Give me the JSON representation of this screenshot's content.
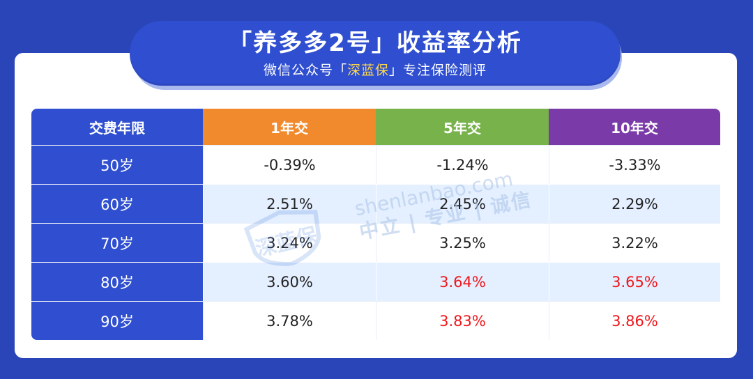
{
  "header": {
    "title": "「养多多2号」收益率分析",
    "subtitle_before": "微信公众号「",
    "subtitle_highlight": "深蓝保",
    "subtitle_after": "」专注保险测评"
  },
  "table": {
    "columns": [
      "交费年限",
      "1年交",
      "5年交",
      "10年交"
    ],
    "rows": [
      {
        "age": "50岁",
        "values": [
          "-0.39%",
          "-1.24%",
          "-3.33%"
        ]
      },
      {
        "age": "60岁",
        "values": [
          "2.51%",
          "2.45%",
          "2.29%"
        ]
      },
      {
        "age": "70岁",
        "values": [
          "3.24%",
          "3.25%",
          "3.22%"
        ]
      },
      {
        "age": "80岁",
        "values": [
          "3.60%",
          "3.64%",
          "3.65%"
        ]
      },
      {
        "age": "90岁",
        "values": [
          "3.78%",
          "3.83%",
          "3.86%"
        ]
      }
    ],
    "highlighted_cells_color": "#f0161b"
  },
  "watermark": {
    "logo_text": "深蓝保",
    "line1": "shenlanbao.com",
    "line2": "中立 | 专业 | 诚信"
  },
  "colors": {
    "background": "#2a45b8",
    "header_blue": "#2f4fd0",
    "col_1": "#f08a2c",
    "col_5": "#78b24a",
    "col_10": "#7a3aa8",
    "alt_row": "#e4efff"
  }
}
